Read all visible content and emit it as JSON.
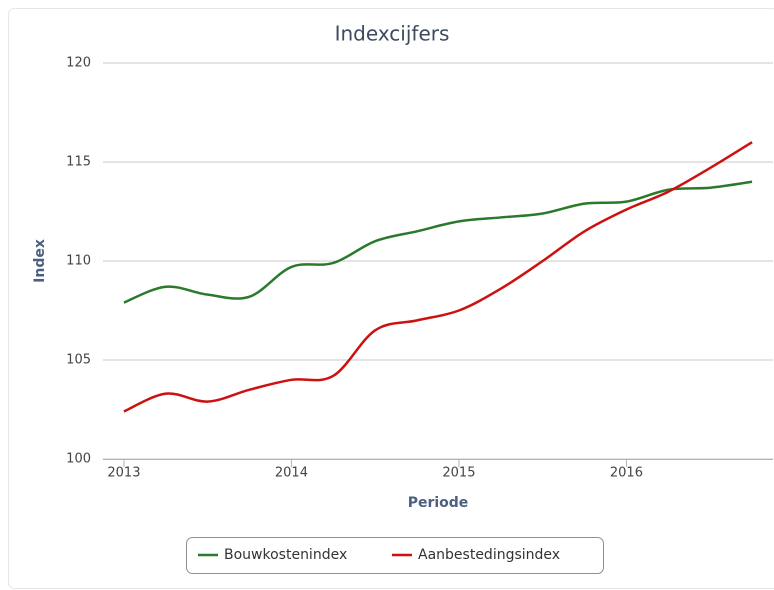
{
  "chart_data": {
    "type": "line",
    "title": "Indexcijfers",
    "y_label": "Index",
    "x_label": "Periode",
    "x": [
      2013,
      2013.25,
      2013.5,
      2013.75,
      2014,
      2014.25,
      2014.5,
      2014.75,
      2015,
      2015.25,
      2015.5,
      2015.75,
      2016,
      2016.25,
      2016.5,
      2016.75
    ],
    "series": [
      {
        "name": "Bouwkostenindex",
        "color": "#2b7a2b",
        "values": [
          107.9,
          108.7,
          108.3,
          108.2,
          109.7,
          109.9,
          111.0,
          111.5,
          112.0,
          112.2,
          112.4,
          112.9,
          113.0,
          113.6,
          113.7,
          114.0
        ]
      },
      {
        "name": "Aanbestedingsindex",
        "color": "#cc1111",
        "values": [
          102.4,
          103.3,
          102.9,
          103.5,
          104.0,
          104.2,
          106.5,
          107.0,
          107.5,
          108.6,
          110.0,
          111.5,
          112.6,
          113.5,
          114.7,
          116.0
        ]
      }
    ],
    "xlim": [
      2012.875,
      2016.875
    ],
    "xticks": [
      2013,
      2014,
      2015,
      2016
    ],
    "ylim": [
      100,
      120
    ],
    "yticks": [
      100,
      105,
      110,
      115,
      120
    ],
    "grid": true,
    "legend": "bottom"
  }
}
